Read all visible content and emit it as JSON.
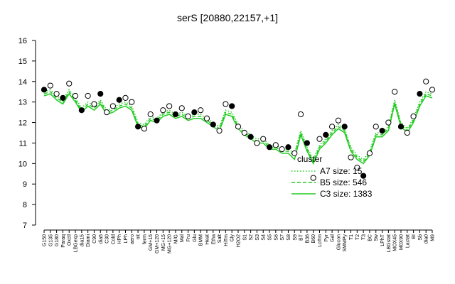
{
  "chart_data": {
    "type": "line",
    "title": "serS [20880,22157,+1]",
    "categories": [
      "G150",
      "G135",
      "G180",
      "Paraq",
      "Oxctl",
      "LBGexp",
      "dia15",
      "Diami",
      "C90",
      "dia5",
      "C30",
      "Cold",
      "HPh",
      "LPh",
      "aero",
      "nit",
      "ferm",
      "GM+15",
      "GM+120",
      "MG+15",
      "MG+120",
      "M/G",
      "Mal",
      "Fru",
      "Glu",
      "BMM",
      "Heat",
      "Etha",
      "Salt",
      "HiTm",
      "Gly",
      "H2O2",
      "S1",
      "S2",
      "S3",
      "S4",
      "S5",
      "S6",
      "S7",
      "S8",
      "S9",
      "BT",
      "B36",
      "B60",
      "LoTm",
      "Pyr",
      "Gal",
      "Glucon",
      "SMMPy",
      "T1",
      "T2",
      "T3",
      "BC",
      "Sw",
      "LPhT",
      "LBGstat",
      "MOX45",
      "M0X90",
      "Lactat",
      "BI",
      "Sb",
      "dia0",
      "M9"
    ],
    "points": [
      13.6,
      13.8,
      13.4,
      13.2,
      13.9,
      13.3,
      12.6,
      13.3,
      12.9,
      13.4,
      12.5,
      12.8,
      13.1,
      13.2,
      13.0,
      11.8,
      11.7,
      12.4,
      12.1,
      12.6,
      12.8,
      12.4,
      12.7,
      12.3,
      12.5,
      12.6,
      12.2,
      11.9,
      11.6,
      12.9,
      12.8,
      11.8,
      11.5,
      11.3,
      11.0,
      11.2,
      10.8,
      10.9,
      10.7,
      10.8,
      10.5,
      12.4,
      11.0,
      9.3,
      11.2,
      11.4,
      11.8,
      12.1,
      11.8,
      10.3,
      9.8,
      9.4,
      10.5,
      11.8,
      11.6,
      12.0,
      13.5,
      11.8,
      11.5,
      12.3,
      13.4,
      14.0,
      13.6
    ],
    "series": [
      {
        "name": "A7 size: 15",
        "color": "#22cc22",
        "dash": "dotted",
        "values": [
          13.5,
          13.6,
          13.3,
          13.1,
          13.6,
          13.2,
          12.7,
          13.0,
          12.8,
          13.1,
          12.6,
          12.7,
          12.9,
          13.0,
          12.8,
          12.0,
          11.9,
          12.3,
          12.2,
          12.5,
          12.6,
          12.4,
          12.5,
          12.3,
          12.4,
          12.4,
          12.2,
          12.0,
          11.8,
          12.6,
          12.5,
          11.9,
          11.6,
          11.4,
          11.2,
          11.2,
          10.9,
          10.9,
          10.7,
          10.7,
          10.5,
          11.6,
          10.8,
          10.2,
          10.9,
          11.2,
          11.6,
          11.9,
          11.7,
          10.8,
          10.4,
          10.2,
          10.6,
          11.5,
          11.5,
          11.8,
          13.1,
          12.0,
          11.7,
          12.2,
          13.0,
          13.5,
          13.4
        ]
      },
      {
        "name": "B5 size: 546",
        "color": "#22cc22",
        "dash": "dashed",
        "values": [
          13.4,
          13.5,
          13.2,
          13.0,
          13.5,
          13.1,
          12.6,
          12.9,
          12.7,
          13.0,
          12.5,
          12.6,
          12.8,
          12.9,
          12.7,
          11.9,
          11.8,
          12.2,
          12.1,
          12.4,
          12.5,
          12.3,
          12.4,
          12.2,
          12.3,
          12.3,
          12.1,
          11.9,
          11.7,
          12.5,
          12.4,
          11.8,
          11.5,
          11.3,
          11.1,
          11.1,
          10.8,
          10.8,
          10.6,
          10.6,
          10.4,
          11.5,
          10.7,
          10.1,
          10.8,
          11.1,
          11.5,
          11.8,
          11.6,
          10.7,
          10.3,
          10.1,
          10.5,
          11.4,
          11.4,
          11.7,
          13.0,
          11.9,
          11.6,
          12.1,
          12.9,
          13.4,
          13.3
        ]
      },
      {
        "name": "C3 size: 1383",
        "color": "#22cc22",
        "dash": "solid",
        "values": [
          13.3,
          13.4,
          13.1,
          12.9,
          13.4,
          13.0,
          12.5,
          12.8,
          12.6,
          12.9,
          12.4,
          12.5,
          12.7,
          12.8,
          12.6,
          11.8,
          11.7,
          12.1,
          12.0,
          12.3,
          12.4,
          12.2,
          12.3,
          12.1,
          12.2,
          12.2,
          12.0,
          11.8,
          11.6,
          12.4,
          12.3,
          11.7,
          11.4,
          11.2,
          11.0,
          11.0,
          10.7,
          10.7,
          10.5,
          10.5,
          10.2,
          11.4,
          10.6,
          10.0,
          10.7,
          11.0,
          11.4,
          11.7,
          11.5,
          10.6,
          10.2,
          10.0,
          10.4,
          11.3,
          11.3,
          11.6,
          12.9,
          11.8,
          11.5,
          12.0,
          12.8,
          13.3,
          13.2
        ]
      }
    ],
    "legend_title": "cluster",
    "ylim": [
      7,
      16
    ],
    "yticks": [
      7,
      8,
      9,
      10,
      11,
      12,
      13,
      14,
      15,
      16
    ]
  }
}
